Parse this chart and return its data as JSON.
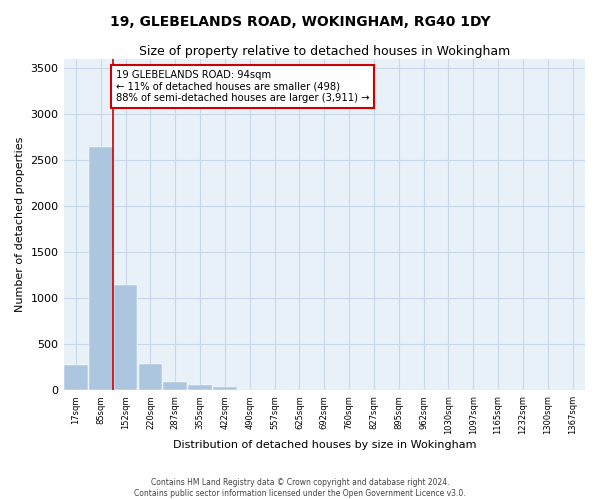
{
  "title": "19, GLEBELANDS ROAD, WOKINGHAM, RG40 1DY",
  "subtitle": "Size of property relative to detached houses in Wokingham",
  "xlabel": "Distribution of detached houses by size in Wokingham",
  "ylabel": "Number of detached properties",
  "bar_values": [
    270,
    2650,
    1145,
    285,
    95,
    55,
    35,
    0,
    0,
    0,
    0,
    0,
    0,
    0,
    0,
    0,
    0,
    0,
    0,
    0,
    0
  ],
  "x_labels": [
    "17sqm",
    "85sqm",
    "152sqm",
    "220sqm",
    "287sqm",
    "355sqm",
    "422sqm",
    "490sqm",
    "557sqm",
    "625sqm",
    "692sqm",
    "760sqm",
    "827sqm",
    "895sqm",
    "962sqm",
    "1030sqm",
    "1097sqm",
    "1165sqm",
    "1232sqm",
    "1300sqm",
    "1367sqm"
  ],
  "bar_color": "#adc6e0",
  "bar_edge_color": "#adc6e0",
  "grid_color": "#c8d8ea",
  "background_color": "#e8f0f8",
  "vline_x_index": 1.5,
  "vline_color": "#cc0000",
  "annotation_text": "19 GLEBELANDS ROAD: 94sqm\n← 11% of detached houses are smaller (498)\n88% of semi-detached houses are larger (3,911) →",
  "annotation_box_color": "#cc0000",
  "ylim": [
    0,
    3600
  ],
  "yticks": [
    0,
    500,
    1000,
    1500,
    2000,
    2500,
    3000,
    3500
  ],
  "footer_line1": "Contains HM Land Registry data © Crown copyright and database right 2024.",
  "footer_line2": "Contains public sector information licensed under the Open Government Licence v3.0.",
  "title_fontsize": 10,
  "subtitle_fontsize": 9,
  "ylabel_fontsize": 8,
  "xlabel_fontsize": 8
}
